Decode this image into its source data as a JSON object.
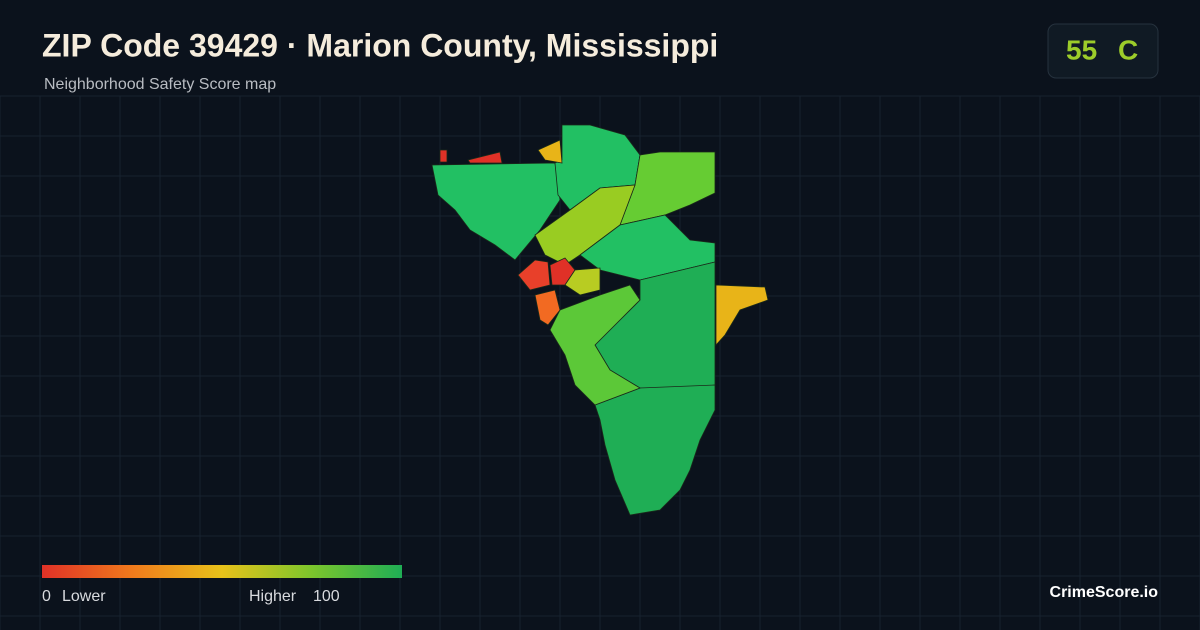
{
  "header": {
    "title": "ZIP Code 39429 · Marion County, Mississippi",
    "subtitle": "Neighborhood Safety Score map"
  },
  "score": {
    "value": 55,
    "grade": "C"
  },
  "legend": {
    "min": 0,
    "min_label": "Lower",
    "max_label": "Higher",
    "max": 100
  },
  "brand": "CrimeScore.io"
}
